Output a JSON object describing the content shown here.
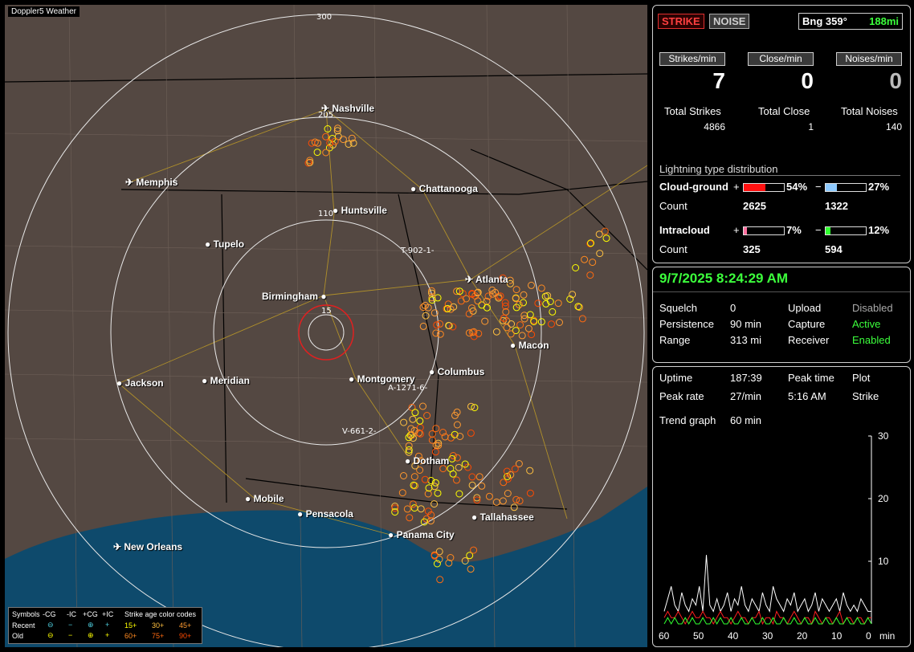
{
  "map": {
    "title": "Doppler5 Weather",
    "ring_labels": [
      "300",
      "205",
      "110",
      "15"
    ],
    "bearing_markers": [
      "T-902-1-",
      "A-1271-6-",
      "V-661-2-"
    ],
    "cities": [
      {
        "name": "Nashville",
        "airport": true
      },
      {
        "name": "Memphis",
        "airport": true
      },
      {
        "name": "Chattanooga",
        "airport": false
      },
      {
        "name": "Huntsville",
        "airport": false
      },
      {
        "name": "Tupelo",
        "airport": false
      },
      {
        "name": "Atlanta",
        "airport": true
      },
      {
        "name": "Birmingham",
        "airport": false
      },
      {
        "name": "Macon",
        "airport": false
      },
      {
        "name": "Columbus",
        "airport": false
      },
      {
        "name": "Montgomery",
        "airport": false
      },
      {
        "name": "Jackson",
        "airport": false
      },
      {
        "name": "Meridian",
        "airport": false
      },
      {
        "name": "Dotham",
        "airport": false
      },
      {
        "name": "Mobile",
        "airport": false
      },
      {
        "name": "Pensacola",
        "airport": false
      },
      {
        "name": "Tallahassee",
        "airport": false
      },
      {
        "name": "Panama City",
        "airport": false
      },
      {
        "name": "New Orleans",
        "airport": true
      }
    ],
    "legend": {
      "symbols_label": "Symbols",
      "cg_minus": "-CG",
      "ic_minus": "-IC",
      "cg_plus": "+CG",
      "ic_plus": "+IC",
      "age_label": "Strike age color codes",
      "recent_label": "Recent",
      "old_label": "Old",
      "recent_ages": [
        "15+",
        "30+",
        "45+"
      ],
      "old_ages": [
        "60+",
        "75+",
        "90+"
      ],
      "colors": [
        "#ffff00",
        "#ffc040",
        "#ff9a30",
        "#ff8a20",
        "#ff6a10",
        "#ff4a00"
      ]
    }
  },
  "top_panel": {
    "strike_button": "STRIKE",
    "noise_button": "NOISE",
    "bearing": "Bng 359°",
    "distance": "188mi",
    "strikes_min_label": "Strikes/min",
    "close_min_label": "Close/min",
    "noises_min_label": "Noises/min",
    "strikes_min": "7",
    "close_min": "0",
    "noises_min": "0",
    "total_strikes_label": "Total Strikes",
    "total_close_label": "Total Close",
    "total_noises_label": "Total Noises",
    "total_strikes": "4866",
    "total_close": "1",
    "total_noises": "140",
    "dist_title": "Lightning type distribution",
    "cg_label": "Cloud-ground",
    "ic_label": "Intracloud",
    "count_label": "Count",
    "plus": "+",
    "minus": "−",
    "cg_plus_pct": "54%",
    "cg_minus_pct": "27%",
    "ic_plus_pct": "7%",
    "ic_minus_pct": "12%",
    "cg_plus_count": "2625",
    "cg_minus_count": "1322",
    "ic_plus_count": "325",
    "ic_minus_count": "594",
    "cg_plus_frac": 0.54,
    "cg_minus_frac": 0.27,
    "ic_plus_frac": 0.07,
    "ic_minus_frac": 0.12,
    "colors": {
      "cg_plus": "#ff1010",
      "cg_minus": "#8ecaff",
      "ic_plus": "#ff70a0",
      "ic_minus": "#30ff30"
    }
  },
  "status_panel": {
    "datetime": "9/7/2025 8:24:29 AM",
    "squelch_label": "Squelch",
    "squelch": "0",
    "persistence_label": "Persistence",
    "persistence": "90 min",
    "range_label": "Range",
    "range": "313 mi",
    "upload_label": "Upload",
    "upload": "Disabled",
    "capture_label": "Capture",
    "capture": "Active",
    "receiver_label": "Receiver",
    "receiver": "Enabled"
  },
  "stats_panel": {
    "uptime_label": "Uptime",
    "uptime": "187:39",
    "peak_time_label": "Peak time",
    "plot_label": "Plot",
    "peak_rate_label": "Peak rate",
    "peak_rate": "27/min",
    "peak_time": "5:16 AM",
    "plot": "Strike",
    "trend_label": "Trend graph",
    "trend": "60 min"
  },
  "chart_data": {
    "type": "line",
    "xlabel": "min",
    "x_ticks": [
      "60",
      "50",
      "40",
      "30",
      "20",
      "10",
      "0"
    ],
    "y_ticks": [
      "30",
      "20",
      "10"
    ],
    "ylim": [
      0,
      30
    ],
    "xlim": [
      60,
      0
    ],
    "series": [
      {
        "color": "#ffffff",
        "values": [
          2,
          4,
          6,
          3,
          2,
          5,
          3,
          2,
          4,
          3,
          6,
          2,
          11,
          3,
          2,
          4,
          2,
          3,
          5,
          2,
          4,
          3,
          6,
          3,
          2,
          4,
          3,
          2,
          5,
          3,
          2,
          6,
          4,
          3,
          2,
          4,
          3,
          5,
          2,
          3,
          4,
          2,
          3,
          5,
          2,
          4,
          3,
          2,
          3,
          4,
          2,
          5,
          3,
          2,
          3,
          2,
          4,
          3,
          2,
          2
        ]
      },
      {
        "color": "#ff2020",
        "values": [
          1,
          2,
          1,
          1,
          2,
          1,
          0,
          1,
          2,
          1,
          1,
          2,
          1,
          1,
          0,
          1,
          2,
          1,
          1,
          0,
          1,
          2,
          1,
          1,
          0,
          1,
          1,
          2,
          0,
          1,
          1,
          0,
          2,
          1,
          1,
          0,
          1,
          2,
          1,
          0,
          1,
          1,
          0,
          2,
          1,
          0,
          1,
          1,
          0,
          1,
          2,
          0,
          1,
          1,
          0,
          1,
          1,
          0,
          1,
          1
        ]
      },
      {
        "color": "#30ff30",
        "values": [
          0,
          1,
          0,
          1,
          0,
          0,
          1,
          0,
          1,
          0,
          0,
          1,
          0,
          0,
          1,
          0,
          1,
          0,
          0,
          1,
          0,
          0,
          1,
          0,
          0,
          1,
          0,
          0,
          1,
          0,
          0,
          1,
          0,
          0,
          1,
          0,
          0,
          1,
          0,
          0,
          1,
          0,
          0,
          1,
          0,
          0,
          1,
          0,
          0,
          1,
          0,
          0,
          1,
          0,
          0,
          1,
          0,
          0,
          1,
          0
        ]
      }
    ]
  }
}
